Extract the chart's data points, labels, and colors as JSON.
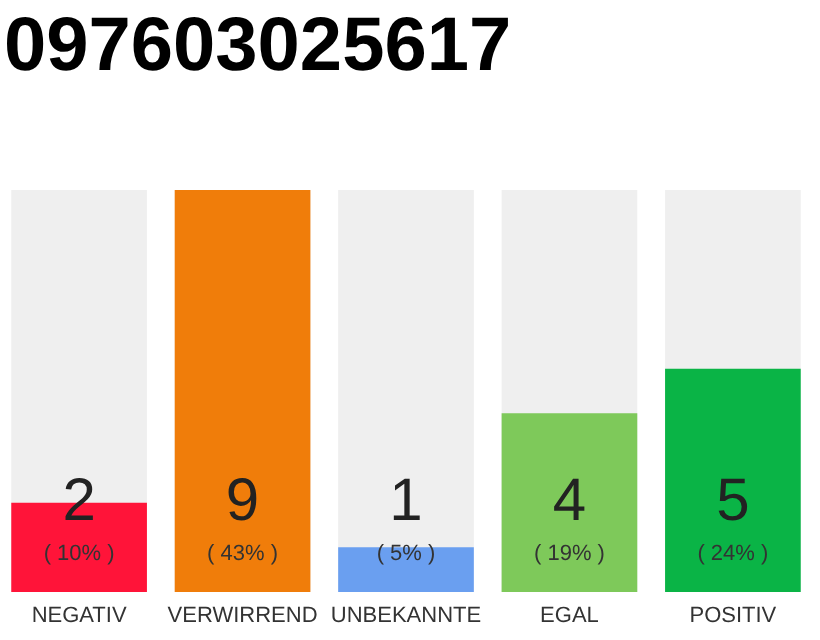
{
  "chart_data": {
    "type": "bar",
    "title": "097603025617",
    "categories": [
      "NEGATIV",
      "VERWIRREND",
      "UNBEKANNTE",
      "EGAL",
      "POSITIV"
    ],
    "values": [
      2,
      9,
      1,
      4,
      5
    ],
    "colors": [
      "#ff1439",
      "#f07d0a",
      "#6a9ff0",
      "#7ec95a",
      "#0ab446"
    ],
    "ylim": [
      0,
      9
    ],
    "tick_labels": "x",
    "data_labels": true,
    "annotations": [
      "( 10% )",
      "( 43% )",
      "( 5% )",
      "( 19% )",
      "( 24% )"
    ]
  }
}
